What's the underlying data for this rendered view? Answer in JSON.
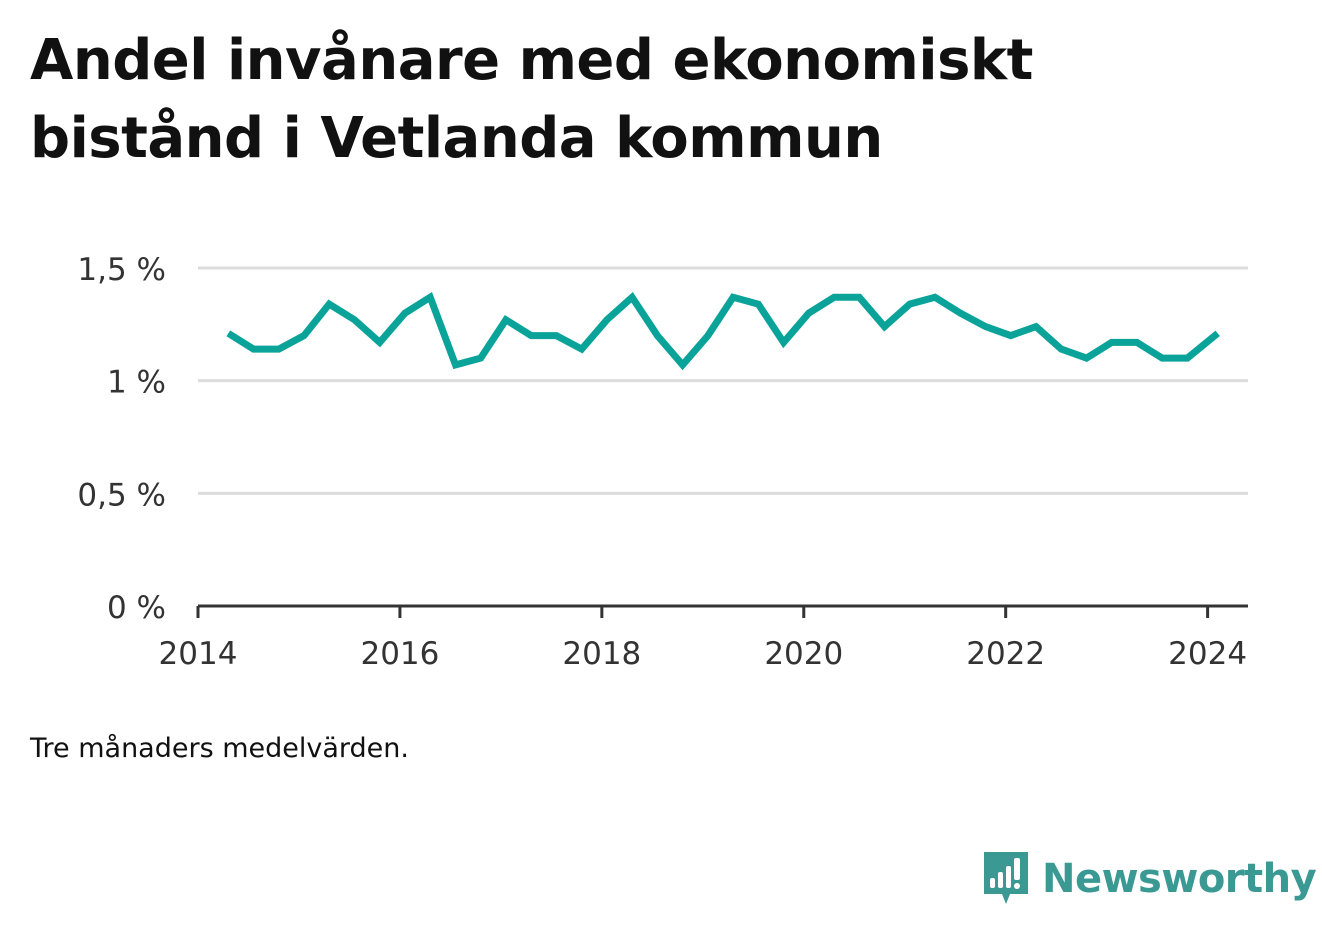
{
  "title": "Andel invånare med ekonomiskt bistånd i Vetlanda kommun",
  "note": "Tre månaders medelvärden.",
  "brand": {
    "name": "Newsworthy",
    "icon": "newsworthy-logo-icon",
    "color": "#3a9a93"
  },
  "chart_data": {
    "type": "line",
    "title": "Andel invånare med ekonomiskt bistånd i Vetlanda kommun",
    "xlabel": "",
    "ylabel": "",
    "xlim": [
      2014.0,
      2024.4
    ],
    "ylim": [
      0,
      1.5
    ],
    "x_ticks": [
      2014,
      2016,
      2018,
      2020,
      2022,
      2024
    ],
    "y_ticks": [
      {
        "value": 0,
        "label": "0 %"
      },
      {
        "value": 0.5,
        "label": "0,5 %"
      },
      {
        "value": 1.0,
        "label": "1 %"
      },
      {
        "value": 1.5,
        "label": "1,5 %"
      }
    ],
    "grid": true,
    "line_color": "#0aa39a",
    "series": [
      {
        "x": [
          2014.3,
          2014.55,
          2014.8,
          2015.05,
          2015.3,
          2015.55,
          2015.8,
          2016.05,
          2016.3,
          2016.55,
          2016.8,
          2017.05,
          2017.3,
          2017.55,
          2017.8,
          2018.05,
          2018.3,
          2018.55,
          2018.8,
          2019.05,
          2019.3,
          2019.55,
          2019.8,
          2020.05,
          2020.3,
          2020.55,
          2020.8,
          2021.05,
          2021.3,
          2021.55,
          2021.8,
          2022.05,
          2022.3,
          2022.55,
          2022.8,
          2023.05,
          2023.3,
          2023.55,
          2023.8,
          2024.1
        ],
        "values": [
          1.21,
          1.14,
          1.14,
          1.2,
          1.34,
          1.27,
          1.17,
          1.3,
          1.37,
          1.07,
          1.1,
          1.27,
          1.2,
          1.2,
          1.14,
          1.27,
          1.37,
          1.2,
          1.07,
          1.2,
          1.37,
          1.34,
          1.17,
          1.3,
          1.37,
          1.37,
          1.24,
          1.34,
          1.37,
          1.3,
          1.24,
          1.2,
          1.24,
          1.14,
          1.1,
          1.17,
          1.17,
          1.1,
          1.1,
          1.21
        ]
      }
    ]
  }
}
